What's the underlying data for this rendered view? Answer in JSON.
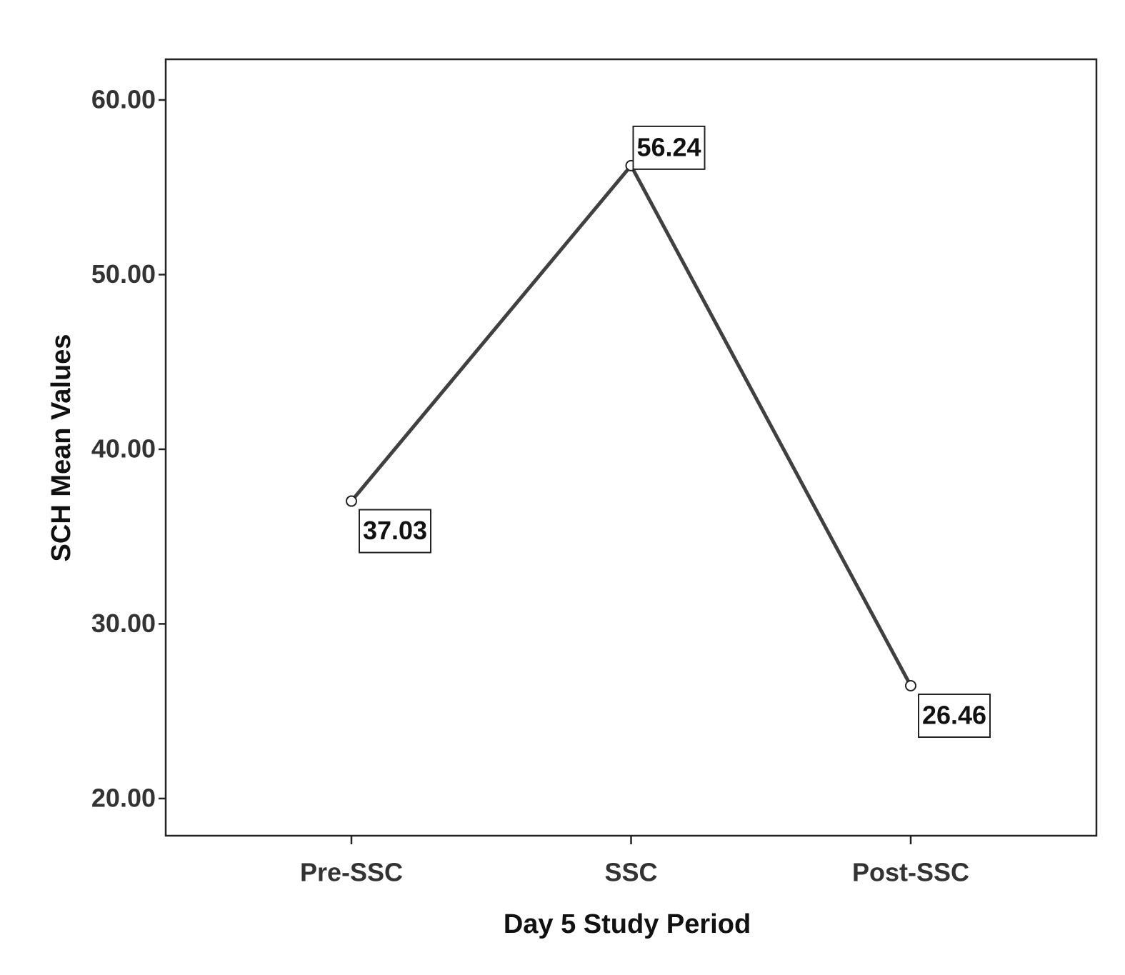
{
  "chart_data": {
    "type": "line",
    "x_label": "Day 5 Study Period",
    "y_label": "SCH Mean Values",
    "categories": [
      "Pre-SSC",
      "SSC",
      "Post-SSC"
    ],
    "values": [
      37.03,
      56.24,
      26.46
    ],
    "color": "#404040",
    "ylim": [
      17.87,
      62.33
    ],
    "yticks": [
      {
        "value": 20,
        "label": "20.00"
      },
      {
        "value": 30,
        "label": "30.00"
      },
      {
        "value": 40,
        "label": "40.00"
      },
      {
        "value": 50,
        "label": "50.00"
      },
      {
        "value": 60,
        "label": "60.00"
      }
    ],
    "grid": false
  }
}
